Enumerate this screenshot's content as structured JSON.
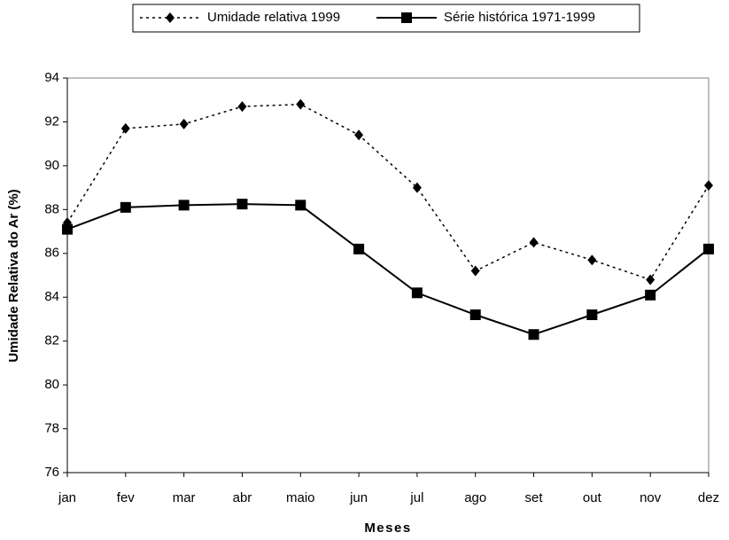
{
  "chart_data": {
    "type": "line",
    "x_label": "Meses",
    "y_label": "Umidade Relativa do Ar (%)",
    "categories": [
      "jan",
      "fev",
      "mar",
      "abr",
      "maio",
      "jun",
      "jul",
      "ago",
      "set",
      "out",
      "nov",
      "dez"
    ],
    "series": [
      {
        "name": "Umidade relativa 1999",
        "color": "#000000",
        "line_style": "dotted",
        "marker": "diamond",
        "values": [
          87.4,
          91.7,
          91.9,
          92.7,
          92.8,
          91.4,
          89.0,
          85.2,
          86.5,
          85.7,
          84.8,
          89.1
        ]
      },
      {
        "name": "Série histórica 1971-1999",
        "color": "#000000",
        "line_style": "solid",
        "marker": "square",
        "values": [
          87.1,
          88.1,
          88.2,
          88.25,
          88.2,
          86.2,
          84.2,
          83.2,
          82.3,
          83.2,
          84.1,
          86.2
        ]
      }
    ],
    "ylim": [
      76,
      94
    ],
    "yticks": [
      76,
      78,
      80,
      82,
      84,
      86,
      88,
      90,
      92,
      94
    ],
    "legend": "top"
  }
}
